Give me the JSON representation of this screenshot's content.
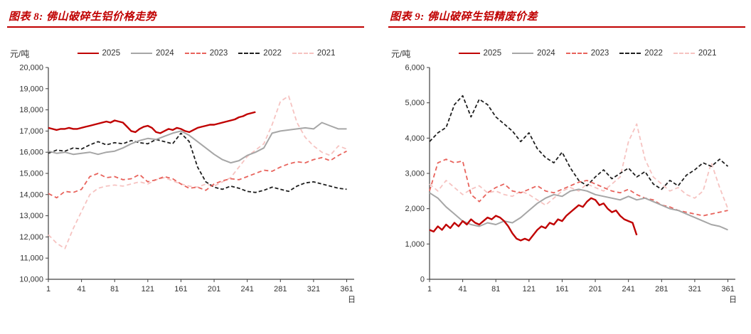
{
  "colors": {
    "title_red": "#C00000",
    "axis": "#404040"
  },
  "chart_data": [
    {
      "type": "line",
      "header": "图表 8: 佛山破碎生铝价格走势",
      "unit_label": "元/吨",
      "x_axis_label": "日",
      "x_ticks": [
        1,
        41,
        81,
        121,
        161,
        201,
        241,
        281,
        321,
        361
      ],
      "xlim": [
        1,
        370
      ],
      "ylim": [
        10000,
        20000
      ],
      "y_step": 1000,
      "grid": false,
      "legend_position": "top",
      "series": [
        {
          "name": "2025",
          "color": "#C00000",
          "dash": "solid",
          "width": 2.4,
          "x": [
            1,
            6,
            11,
            16,
            21,
            26,
            31,
            36,
            41,
            46,
            51,
            56,
            61,
            66,
            71,
            76,
            81,
            86,
            91,
            96,
            101,
            106,
            111,
            116,
            121,
            126,
            131,
            136,
            141,
            146,
            151,
            156,
            161,
            166,
            171,
            176,
            181,
            186,
            191,
            196,
            201,
            206,
            211,
            216,
            221,
            226,
            231,
            236,
            241,
            246,
            251
          ],
          "y": [
            17150,
            17100,
            17050,
            17100,
            17100,
            17150,
            17100,
            17100,
            17150,
            17200,
            17250,
            17300,
            17350,
            17400,
            17450,
            17400,
            17500,
            17450,
            17400,
            17200,
            17000,
            16950,
            17100,
            17200,
            17250,
            17150,
            16950,
            16900,
            17000,
            17100,
            17050,
            17150,
            17100,
            17000,
            16950,
            17050,
            17150,
            17200,
            17250,
            17300,
            17300,
            17350,
            17400,
            17450,
            17500,
            17550,
            17650,
            17700,
            17800,
            17850,
            17900
          ]
        },
        {
          "name": "2024",
          "color": "#A6A6A6",
          "dash": "solid",
          "width": 2,
          "x": [
            1,
            11,
            21,
            31,
            41,
            51,
            61,
            71,
            81,
            91,
            101,
            111,
            121,
            131,
            141,
            151,
            161,
            171,
            181,
            191,
            201,
            211,
            221,
            231,
            241,
            251,
            261,
            271,
            281,
            291,
            301,
            311,
            321,
            331,
            341,
            351,
            361
          ],
          "y": [
            16050,
            15950,
            16000,
            15900,
            15950,
            16000,
            15900,
            16000,
            16050,
            16200,
            16400,
            16550,
            16650,
            16600,
            16750,
            16900,
            17000,
            16800,
            16500,
            16200,
            15900,
            15650,
            15500,
            15600,
            15850,
            16000,
            16200,
            16900,
            17000,
            17050,
            17100,
            17150,
            17100,
            17400,
            17250,
            17100,
            17100
          ]
        },
        {
          "name": "2023",
          "color": "#E8635C",
          "dash": "6 4",
          "width": 1.8,
          "x": [
            1,
            11,
            21,
            31,
            41,
            51,
            61,
            71,
            81,
            91,
            101,
            111,
            121,
            131,
            141,
            151,
            161,
            171,
            181,
            191,
            201,
            211,
            221,
            231,
            241,
            251,
            261,
            271,
            281,
            291,
            301,
            311,
            321,
            331,
            341,
            351,
            361
          ],
          "y": [
            14050,
            13850,
            14150,
            14100,
            14250,
            14850,
            15000,
            14800,
            14850,
            14700,
            14750,
            14950,
            14600,
            14700,
            14850,
            14750,
            14500,
            14300,
            14350,
            14200,
            14500,
            14650,
            14750,
            14700,
            14850,
            15000,
            15150,
            15100,
            15300,
            15450,
            15550,
            15500,
            15650,
            15750,
            15600,
            15850,
            16050
          ]
        },
        {
          "name": "2022",
          "color": "#1F1F1F",
          "dash": "5 3",
          "width": 1.8,
          "x": [
            1,
            11,
            21,
            31,
            41,
            51,
            61,
            71,
            81,
            91,
            101,
            111,
            121,
            131,
            141,
            151,
            161,
            171,
            181,
            191,
            201,
            211,
            221,
            231,
            241,
            251,
            261,
            271,
            281,
            291,
            301,
            311,
            321,
            331,
            341,
            351,
            361
          ],
          "y": [
            15950,
            16100,
            16050,
            16200,
            16150,
            16350,
            16500,
            16350,
            16450,
            16400,
            16550,
            16450,
            16400,
            16600,
            16500,
            16400,
            16900,
            16500,
            15300,
            14600,
            14350,
            14250,
            14400,
            14300,
            14150,
            14100,
            14200,
            14350,
            14250,
            14150,
            14400,
            14550,
            14600,
            14500,
            14400,
            14300,
            14250
          ]
        },
        {
          "name": "2021",
          "color": "#F6C3C1",
          "dash": "6 4",
          "width": 1.8,
          "x": [
            1,
            11,
            21,
            31,
            41,
            51,
            61,
            71,
            81,
            91,
            101,
            111,
            121,
            131,
            141,
            151,
            161,
            171,
            181,
            191,
            201,
            211,
            221,
            231,
            241,
            251,
            261,
            271,
            281,
            291,
            301,
            311,
            321,
            331,
            341,
            351,
            361
          ],
          "y": [
            12100,
            11700,
            11450,
            12400,
            13200,
            14000,
            14300,
            14400,
            14450,
            14400,
            14500,
            14600,
            14500,
            14700,
            14800,
            14650,
            14500,
            14400,
            14350,
            14500,
            14400,
            14600,
            14800,
            15300,
            15800,
            16100,
            16400,
            17300,
            18400,
            18650,
            17400,
            16700,
            16300,
            16000,
            15850,
            16300,
            16150
          ]
        }
      ]
    },
    {
      "type": "line",
      "header": "图表 9: 佛山破碎生铝精废价差",
      "unit_label": "元/吨",
      "x_axis_label": "日",
      "x_ticks": [
        1,
        41,
        81,
        121,
        161,
        201,
        241,
        281,
        321,
        361
      ],
      "xlim": [
        1,
        370
      ],
      "ylim": [
        0,
        6000
      ],
      "y_step": 1000,
      "grid": false,
      "legend_position": "top",
      "series": [
        {
          "name": "2025",
          "color": "#C00000",
          "dash": "solid",
          "width": 2.4,
          "x": [
            1,
            6,
            11,
            16,
            21,
            26,
            31,
            36,
            41,
            46,
            51,
            56,
            61,
            66,
            71,
            76,
            81,
            86,
            91,
            96,
            101,
            106,
            111,
            116,
            121,
            126,
            131,
            136,
            141,
            146,
            151,
            156,
            161,
            166,
            171,
            176,
            181,
            186,
            191,
            196,
            201,
            206,
            211,
            216,
            221,
            226,
            231,
            236,
            241,
            246,
            251
          ],
          "y": [
            1400,
            1350,
            1500,
            1400,
            1550,
            1450,
            1600,
            1500,
            1650,
            1550,
            1700,
            1600,
            1550,
            1650,
            1750,
            1700,
            1800,
            1750,
            1650,
            1500,
            1300,
            1150,
            1100,
            1150,
            1100,
            1250,
            1400,
            1500,
            1450,
            1600,
            1550,
            1700,
            1650,
            1800,
            1900,
            2000,
            2100,
            2050,
            2200,
            2300,
            2250,
            2100,
            2150,
            2000,
            1900,
            1950,
            1800,
            1700,
            1650,
            1600,
            1250
          ]
        },
        {
          "name": "2024",
          "color": "#A6A6A6",
          "dash": "solid",
          "width": 2,
          "x": [
            1,
            11,
            21,
            31,
            41,
            51,
            61,
            71,
            81,
            91,
            101,
            111,
            121,
            131,
            141,
            151,
            161,
            171,
            181,
            191,
            201,
            211,
            221,
            231,
            241,
            251,
            261,
            271,
            281,
            291,
            301,
            311,
            321,
            331,
            341,
            351,
            361
          ],
          "y": [
            2450,
            2300,
            2050,
            1850,
            1650,
            1550,
            1500,
            1600,
            1550,
            1650,
            1600,
            1750,
            1950,
            2150,
            2300,
            2400,
            2350,
            2500,
            2550,
            2500,
            2400,
            2350,
            2300,
            2250,
            2350,
            2250,
            2300,
            2200,
            2100,
            2000,
            1950,
            1850,
            1750,
            1650,
            1550,
            1500,
            1400
          ]
        },
        {
          "name": "2023",
          "color": "#E8635C",
          "dash": "6 4",
          "width": 1.8,
          "x": [
            1,
            11,
            21,
            31,
            41,
            51,
            61,
            71,
            81,
            91,
            101,
            111,
            121,
            131,
            141,
            151,
            161,
            171,
            181,
            191,
            201,
            211,
            221,
            231,
            241,
            251,
            261,
            271,
            281,
            291,
            301,
            311,
            321,
            331,
            341,
            351,
            361
          ],
          "y": [
            2500,
            3300,
            3400,
            3300,
            3350,
            2400,
            2200,
            2450,
            2600,
            2700,
            2500,
            2450,
            2550,
            2650,
            2500,
            2450,
            2550,
            2650,
            2750,
            2800,
            2700,
            2600,
            2500,
            2450,
            2550,
            2400,
            2300,
            2250,
            2100,
            2050,
            1950,
            1900,
            1850,
            1800,
            1850,
            1900,
            1950
          ]
        },
        {
          "name": "2022",
          "color": "#1F1F1F",
          "dash": "5 3",
          "width": 1.8,
          "x": [
            1,
            11,
            21,
            31,
            41,
            51,
            61,
            71,
            81,
            91,
            101,
            111,
            121,
            131,
            141,
            151,
            161,
            171,
            181,
            191,
            201,
            211,
            221,
            231,
            241,
            251,
            261,
            271,
            281,
            291,
            301,
            311,
            321,
            331,
            341,
            351,
            361
          ],
          "y": [
            3900,
            4150,
            4300,
            4950,
            5200,
            4600,
            5100,
            4950,
            4600,
            4400,
            4200,
            3900,
            4150,
            3700,
            3450,
            3300,
            3600,
            3150,
            2800,
            2650,
            2900,
            3100,
            2850,
            3000,
            3150,
            2900,
            3050,
            2700,
            2550,
            2800,
            2650,
            2950,
            3100,
            3300,
            3200,
            3400,
            3200
          ]
        },
        {
          "name": "2021",
          "color": "#F6C3C1",
          "dash": "6 4",
          "width": 1.8,
          "x": [
            1,
            11,
            21,
            31,
            41,
            51,
            61,
            71,
            81,
            91,
            101,
            111,
            121,
            131,
            141,
            151,
            161,
            171,
            181,
            191,
            201,
            211,
            221,
            231,
            241,
            251,
            261,
            271,
            281,
            291,
            301,
            311,
            321,
            331,
            341,
            351,
            361
          ],
          "y": [
            2700,
            2500,
            2800,
            2600,
            2400,
            2550,
            2650,
            2450,
            2500,
            2400,
            2350,
            2500,
            2400,
            2250,
            2100,
            2300,
            2500,
            2600,
            2500,
            2700,
            2600,
            2500,
            2700,
            2900,
            3900,
            4400,
            3400,
            2900,
            2700,
            2500,
            2600,
            2400,
            2300,
            2500,
            3300,
            2600,
            2000
          ]
        }
      ]
    }
  ]
}
